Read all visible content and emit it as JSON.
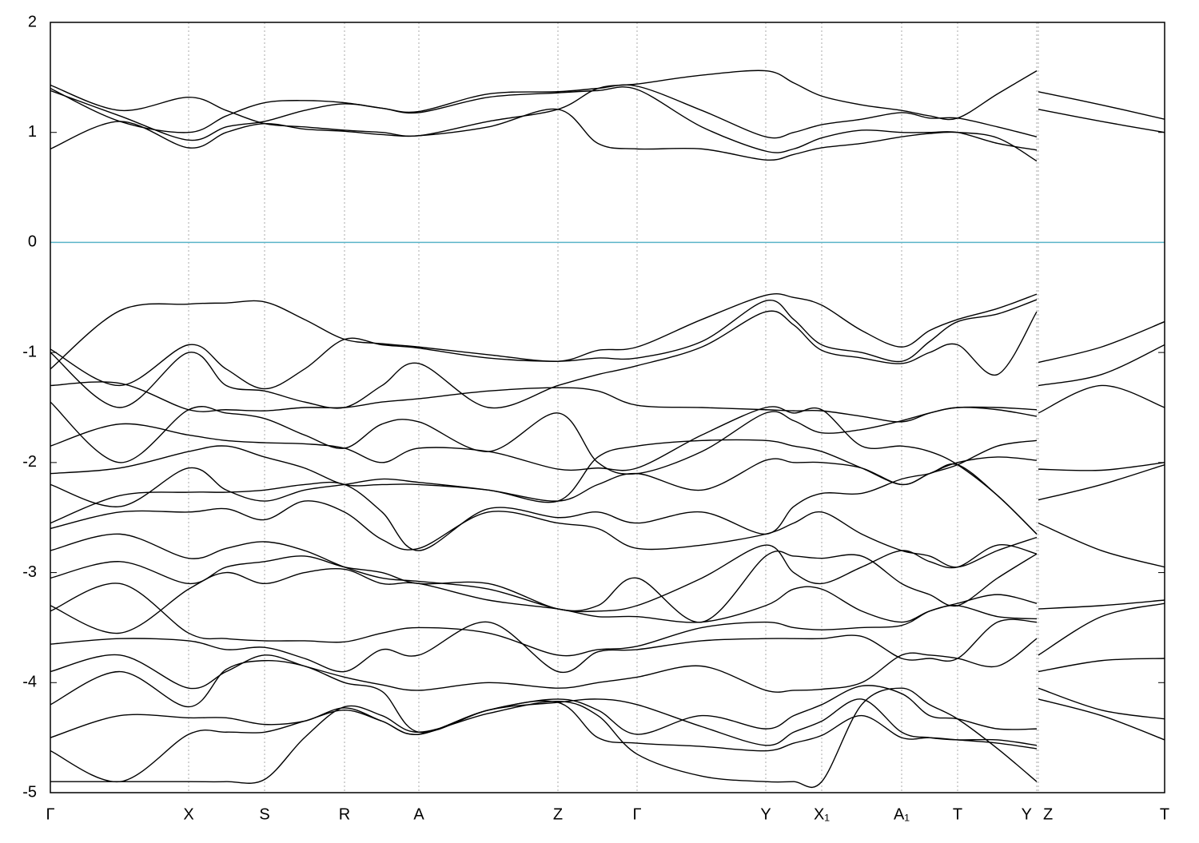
{
  "chart_data": {
    "type": "line",
    "x": [
      0,
      0.87,
      1.73,
      2.2,
      2.68,
      3.18,
      3.68,
      4.15,
      4.61,
      5.48,
      6.35,
      6.85,
      7.34,
      8.15,
      8.95,
      9.3,
      9.65,
      10.15,
      10.65,
      11.0,
      11.35,
      11.85,
      12.34,
      12.35,
      12.36,
      13.15,
      13.94
    ],
    "xlim": [
      0,
      13.94
    ],
    "xticks": [
      {
        "value": 0,
        "label": "Γ"
      },
      {
        "value": 1.73,
        "label": "X"
      },
      {
        "value": 2.68,
        "label": "S"
      },
      {
        "value": 3.68,
        "label": "R"
      },
      {
        "value": 4.61,
        "label": "A"
      },
      {
        "value": 6.35,
        "label": "Z"
      },
      {
        "value": 7.34,
        "label": "Γ"
      },
      {
        "value": 8.95,
        "label": "Y"
      },
      {
        "value": 9.65,
        "label": "X₁"
      },
      {
        "value": 10.65,
        "label": "A₁"
      },
      {
        "value": 11.35,
        "label": "T"
      },
      {
        "value": 12.34,
        "label": "Y"
      },
      {
        "value": 12.36,
        "label": "Z"
      },
      {
        "value": 13.94,
        "label": "T"
      }
    ],
    "ylim": [
      -5,
      2
    ],
    "yticks": [
      -5,
      -4,
      -3,
      -2,
      -1,
      0,
      1,
      2
    ],
    "grid": true,
    "hlines": [
      {
        "value": 0,
        "color": "#5ab4c8"
      }
    ],
    "series": [
      {
        "color": "#000000",
        "values": [
          0.85,
          1.1,
          0.86,
          1.0,
          1.08,
          1.03,
          1.01,
          0.98,
          0.97,
          1.05,
          1.21,
          0.9,
          0.85,
          0.85,
          0.75,
          0.8,
          0.86,
          0.9,
          0.96,
          0.99,
          1.0,
          0.95,
          0.74,
          null,
          1.21,
          1.1,
          1.0
        ]
      },
      {
        "color": "#000000",
        "values": [
          1.38,
          1.15,
          0.93,
          1.05,
          1.1,
          1.2,
          1.26,
          1.22,
          1.18,
          1.32,
          1.36,
          1.38,
          1.39,
          1.05,
          0.83,
          0.85,
          0.95,
          1.02,
          1.0,
          1.0,
          1.0,
          0.9,
          0.84,
          null,
          1.37,
          1.25,
          1.12
        ]
      },
      {
        "color": "#000000",
        "values": [
          1.4,
          1.1,
          1.0,
          1.15,
          1.27,
          1.29,
          1.27,
          1.22,
          1.19,
          1.35,
          1.37,
          1.4,
          1.42,
          1.2,
          0.96,
          1.0,
          1.07,
          1.12,
          1.18,
          1.13,
          1.13,
          1.05,
          0.96,
          null,
          null,
          null,
          null
        ]
      },
      {
        "color": "#000000",
        "values": [
          1.43,
          1.2,
          1.32,
          1.2,
          1.08,
          1.05,
          1.02,
          1.0,
          0.97,
          1.1,
          1.21,
          1.4,
          1.44,
          1.52,
          1.56,
          1.45,
          1.33,
          1.25,
          1.2,
          1.15,
          1.13,
          1.35,
          1.56,
          null,
          null,
          null,
          null
        ]
      },
      {
        "color": "#000000",
        "values": [
          -1.15,
          -0.62,
          -0.56,
          -0.55,
          -0.54,
          -0.7,
          -0.88,
          -0.92,
          -0.95,
          -1.02,
          -1.08,
          -0.98,
          -0.95,
          -0.7,
          -0.48,
          -0.5,
          -0.57,
          -0.8,
          -0.95,
          -0.8,
          -0.7,
          -0.6,
          -0.47,
          null,
          -1.09,
          -0.95,
          -0.72
        ]
      },
      {
        "color": "#000000",
        "values": [
          -0.97,
          -1.3,
          -0.93,
          -1.15,
          -1.33,
          -1.15,
          -0.88,
          -0.93,
          -0.96,
          -1.05,
          -1.08,
          -1.05,
          -1.05,
          -0.9,
          -0.53,
          -0.7,
          -0.93,
          -1.0,
          -1.08,
          -0.9,
          -0.72,
          -0.65,
          -0.52,
          null,
          -1.3,
          -1.2,
          -0.93
        ]
      },
      {
        "color": "#000000",
        "values": [
          -1.0,
          -1.5,
          -1.0,
          -1.3,
          -1.35,
          -1.45,
          -1.5,
          -1.3,
          -1.1,
          -1.5,
          -1.3,
          -1.2,
          -1.12,
          -0.95,
          -0.63,
          -0.75,
          -0.98,
          -1.05,
          -1.1,
          -1.0,
          -0.93,
          -1.2,
          -0.63,
          null,
          -1.55,
          -1.3,
          -1.5
        ]
      },
      {
        "color": "#000000",
        "values": [
          -1.3,
          -1.28,
          -1.52,
          -1.52,
          -1.53,
          -1.5,
          -1.5,
          -1.45,
          -1.42,
          -1.35,
          -1.32,
          -1.35,
          -1.48,
          -1.5,
          -1.52,
          -1.53,
          -1.53,
          -1.58,
          -1.63,
          -1.55,
          -1.5,
          -1.5,
          -1.52,
          null,
          -2.06,
          -2.07,
          -2.0
        ]
      },
      {
        "color": "#000000",
        "values": [
          -1.45,
          -2.0,
          -1.52,
          -1.55,
          -1.6,
          -1.75,
          -1.87,
          -1.65,
          -1.63,
          -1.9,
          -1.55,
          -2.0,
          -2.1,
          -1.9,
          -1.55,
          -1.62,
          -1.73,
          -1.7,
          -1.62,
          -1.55,
          -1.5,
          -1.52,
          -1.58,
          null,
          -2.34,
          -2.2,
          -2.02
        ]
      },
      {
        "color": "#000000",
        "values": [
          -1.85,
          -1.65,
          -1.75,
          -1.8,
          -1.82,
          -1.83,
          -1.87,
          -2.0,
          -1.87,
          -1.9,
          -2.06,
          -2.05,
          -2.05,
          -1.75,
          -1.5,
          -1.55,
          -1.52,
          -1.85,
          -1.85,
          -1.9,
          -2.02,
          -2.3,
          -2.65,
          null,
          -2.55,
          -2.8,
          -2.95
        ]
      },
      {
        "color": "#000000",
        "values": [
          -2.1,
          -2.05,
          -1.9,
          -1.85,
          -1.95,
          -2.05,
          -2.2,
          -2.2,
          -2.2,
          -2.25,
          -2.35,
          -1.95,
          -1.85,
          -1.8,
          -1.8,
          -1.85,
          -1.9,
          -2.05,
          -2.2,
          -2.1,
          -2.02,
          -1.85,
          -1.8,
          null,
          -3.33,
          -3.3,
          -3.25
        ]
      },
      {
        "color": "#000000",
        "values": [
          -2.2,
          -2.4,
          -2.05,
          -2.25,
          -2.35,
          -2.25,
          -2.2,
          -2.15,
          -2.18,
          -2.25,
          -2.35,
          -2.2,
          -2.1,
          -2.25,
          -1.98,
          -2.0,
          -2.0,
          -2.05,
          -2.2,
          -2.1,
          -2.0,
          -1.95,
          -1.98,
          null,
          -3.75,
          -3.4,
          -3.28
        ]
      },
      {
        "color": "#000000",
        "values": [
          -2.55,
          -2.3,
          -2.27,
          -2.27,
          -2.25,
          -2.2,
          -2.2,
          -2.45,
          -2.8,
          -2.42,
          -2.5,
          -2.45,
          -2.55,
          -2.45,
          -2.65,
          -2.4,
          -2.28,
          -2.28,
          -2.15,
          -2.1,
          -2.02,
          -2.3,
          -2.65,
          null,
          -3.9,
          -3.8,
          -3.78
        ]
      },
      {
        "color": "#000000",
        "values": [
          -2.6,
          -2.45,
          -2.45,
          -2.42,
          -2.52,
          -2.35,
          -2.45,
          -2.7,
          -2.78,
          -2.45,
          -2.55,
          -2.6,
          -2.78,
          -2.75,
          -2.65,
          -2.55,
          -2.45,
          -2.65,
          -2.8,
          -2.85,
          -2.95,
          -2.8,
          -2.68,
          null,
          -4.05,
          -4.25,
          -4.33
        ]
      },
      {
        "color": "#000000",
        "values": [
          -2.8,
          -2.65,
          -2.87,
          -2.78,
          -2.72,
          -2.8,
          -2.95,
          -3.05,
          -3.08,
          -3.15,
          -3.33,
          -3.35,
          -3.3,
          -3.05,
          -2.75,
          -3.0,
          -3.1,
          -2.95,
          -2.8,
          -2.9,
          -2.95,
          -2.75,
          -2.83,
          null,
          -4.15,
          -4.3,
          -4.52
        ]
      },
      {
        "color": "#000000",
        "values": [
          -3.05,
          -2.9,
          -3.1,
          -2.95,
          -2.9,
          -2.85,
          -2.95,
          -3.0,
          -3.1,
          -3.1,
          -3.33,
          -3.3,
          -3.05,
          -3.45,
          -2.85,
          -2.85,
          -2.87,
          -2.85,
          -3.1,
          -3.2,
          -3.3,
          -3.05,
          -2.83,
          null,
          null,
          null,
          null
        ]
      },
      {
        "color": "#000000",
        "values": [
          -3.3,
          -3.55,
          -3.15,
          -3.0,
          -3.1,
          -3.0,
          -2.97,
          -3.1,
          -3.1,
          -3.25,
          -3.33,
          -3.4,
          -3.4,
          -3.45,
          -3.3,
          -3.15,
          -3.15,
          -3.35,
          -3.45,
          -3.35,
          -3.3,
          -3.4,
          -3.42,
          null,
          null,
          null,
          null
        ]
      },
      {
        "color": "#000000",
        "values": [
          -3.35,
          -3.1,
          -3.55,
          -3.6,
          -3.62,
          -3.62,
          -3.63,
          -3.55,
          -3.5,
          -3.55,
          -3.75,
          -3.7,
          -3.67,
          -3.5,
          -3.45,
          -3.5,
          -3.52,
          -3.5,
          -3.48,
          -3.35,
          -3.28,
          -3.2,
          -3.28,
          null,
          null,
          null,
          null
        ]
      },
      {
        "color": "#000000",
        "values": [
          -3.65,
          -3.6,
          -3.62,
          -3.7,
          -3.68,
          -3.78,
          -3.9,
          -3.7,
          -3.75,
          -3.45,
          -3.9,
          -3.72,
          -3.7,
          -3.62,
          -3.6,
          -3.6,
          -3.6,
          -3.58,
          -3.78,
          -3.78,
          -3.78,
          -3.45,
          -3.45,
          null,
          null,
          null,
          null
        ]
      },
      {
        "color": "#000000",
        "values": [
          -3.9,
          -3.75,
          -4.05,
          -3.9,
          -3.75,
          -3.85,
          -3.95,
          -4.02,
          -4.07,
          -4.0,
          -4.05,
          -4.0,
          -3.95,
          -3.85,
          -4.07,
          -4.07,
          -4.06,
          -4.0,
          -3.75,
          -3.75,
          -3.78,
          -3.85,
          -3.6,
          null,
          null,
          null,
          null
        ]
      },
      {
        "color": "#000000",
        "values": [
          -4.2,
          -3.9,
          -4.22,
          -3.88,
          -3.8,
          -3.85,
          -4.0,
          -4.08,
          -4.45,
          -4.25,
          -4.15,
          -4.25,
          -4.47,
          -4.3,
          -4.42,
          -4.3,
          -4.2,
          -4.03,
          -4.1,
          -4.3,
          -4.33,
          -4.42,
          -4.42,
          null,
          null,
          null,
          null
        ]
      },
      {
        "color": "#000000",
        "values": [
          -4.5,
          -4.3,
          -4.32,
          -4.32,
          -4.38,
          -4.35,
          -4.23,
          -4.35,
          -4.47,
          -4.25,
          -4.18,
          -4.15,
          -4.2,
          -4.4,
          -4.57,
          -4.45,
          -4.35,
          -4.15,
          -4.45,
          -4.5,
          -4.52,
          -4.52,
          -4.57,
          null,
          null,
          null,
          null
        ]
      },
      {
        "color": "#000000",
        "values": [
          -4.62,
          -4.9,
          -4.47,
          -4.45,
          -4.45,
          -4.35,
          -4.25,
          -4.35,
          -4.47,
          -4.25,
          -4.18,
          -4.5,
          -4.55,
          -4.58,
          -4.62,
          -4.55,
          -4.48,
          -4.3,
          -4.5,
          -4.5,
          -4.52,
          -4.55,
          -4.6,
          null,
          null,
          null,
          null
        ]
      },
      {
        "color": "#000000",
        "values": [
          -4.9,
          -4.9,
          -4.9,
          -4.9,
          -4.88,
          -4.5,
          -4.22,
          -4.3,
          -4.45,
          -4.28,
          -4.17,
          -4.3,
          -4.65,
          -4.85,
          -4.9,
          -4.9,
          -4.9,
          -4.2,
          -4.05,
          -4.2,
          -4.33,
          -4.6,
          -4.9,
          null,
          null,
          null,
          null
        ]
      }
    ]
  }
}
